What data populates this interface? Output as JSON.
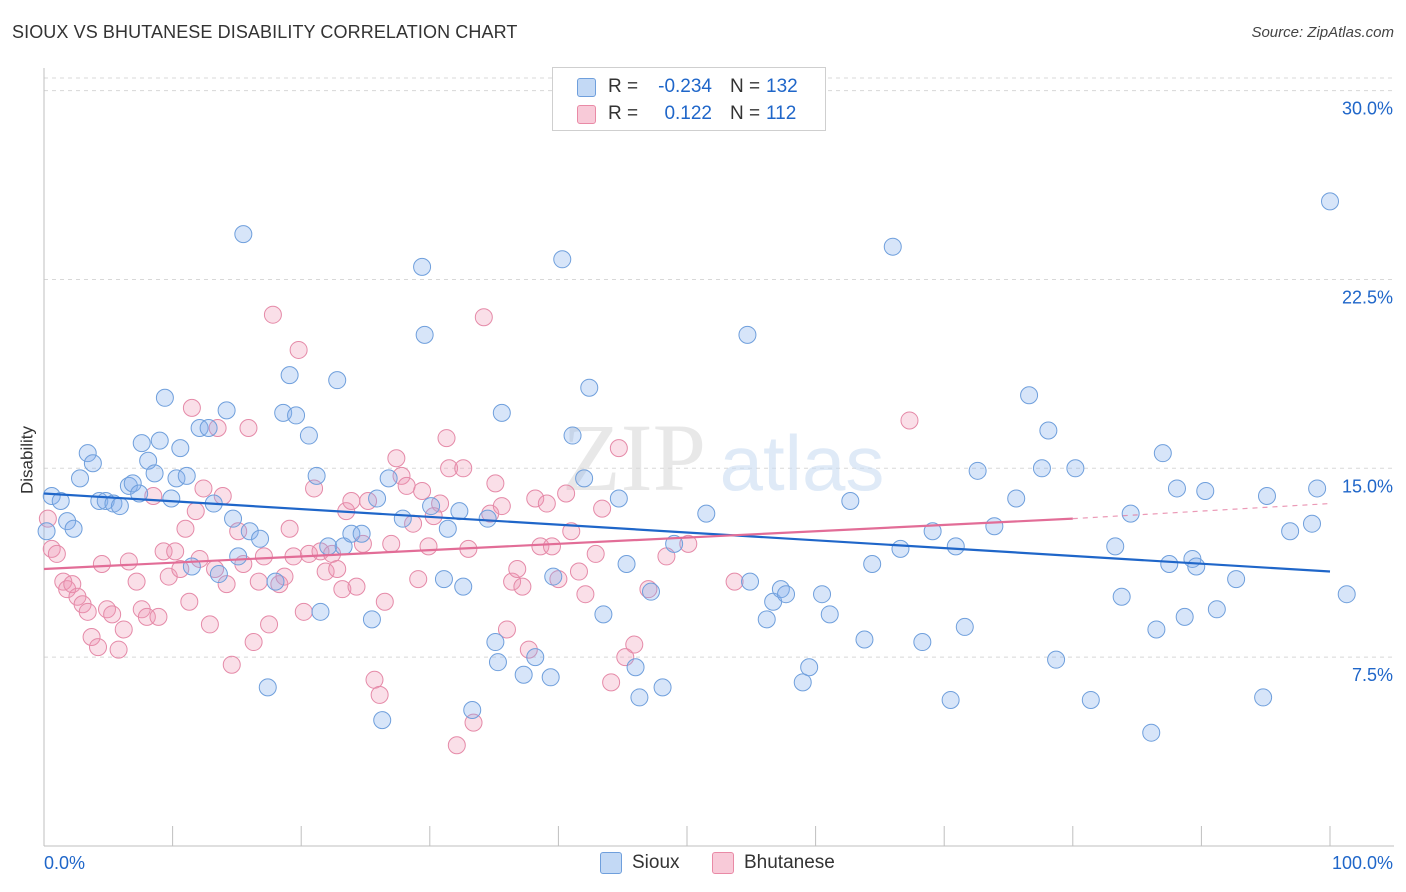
{
  "title": "SIOUX VS BHUTANESE DISABILITY CORRELATION CHART",
  "source": "Source: ZipAtlas.com",
  "watermark": "ZIPatlas",
  "legend": {
    "rows": [
      {
        "r_label": "R =",
        "r_value": "-0.234",
        "n_label": "N =",
        "n_value": "132",
        "color": "#a8c8f0",
        "border": "#6f9fdc"
      },
      {
        "r_label": "R =",
        "r_value": "0.122",
        "n_label": "N =",
        "n_value": "112",
        "color": "#f5b8cb",
        "border": "#e98aa6"
      }
    ]
  },
  "bottom_legend": [
    "Sioux",
    "Bhutanese"
  ],
  "colors": {
    "sioux_fill": "rgba(130,175,235,0.32)",
    "sioux_stroke": "#6f9fdc",
    "sioux_line": "#1f66c9",
    "bhutanese_fill": "rgba(240,150,180,0.30)",
    "bhutanese_stroke": "#e58aa8",
    "bhutanese_line": "#e26d97",
    "axis_text": "#1f66c9",
    "grid": "#d8d8d8"
  },
  "chart_data": {
    "type": "scatter",
    "title": "SIOUX VS BHUTANESE DISABILITY CORRELATION CHART",
    "xlabel": "",
    "ylabel": "Disability",
    "xlim": [
      0,
      100
    ],
    "ylim": [
      0,
      30.5
    ],
    "x_tick_labels": [
      "0.0%",
      "100.0%"
    ],
    "y_ticks": [
      7.5,
      15.0,
      22.5,
      30.0
    ],
    "y_tick_labels": [
      "7.5%",
      "15.0%",
      "22.5%",
      "30.0%"
    ],
    "grid": true,
    "legend_position": "top-center",
    "series": [
      {
        "name": "Sioux",
        "r": -0.234,
        "n": 132,
        "trend": {
          "x": [
            0,
            100
          ],
          "y": [
            14.0,
            10.9
          ]
        },
        "points": [
          [
            0.2,
            12.5
          ],
          [
            0.6,
            13.9
          ],
          [
            1.3,
            13.7
          ],
          [
            1.8,
            12.9
          ],
          [
            2.3,
            12.6
          ],
          [
            2.8,
            14.6
          ],
          [
            3.4,
            15.6
          ],
          [
            3.8,
            15.2
          ],
          [
            4.3,
            13.7
          ],
          [
            4.8,
            13.7
          ],
          [
            5.4,
            13.6
          ],
          [
            5.9,
            13.5
          ],
          [
            6.6,
            14.3
          ],
          [
            6.9,
            14.4
          ],
          [
            7.4,
            14.0
          ],
          [
            7.6,
            16.0
          ],
          [
            8.1,
            15.3
          ],
          [
            8.6,
            14.8
          ],
          [
            9.0,
            16.1
          ],
          [
            9.4,
            17.8
          ],
          [
            9.9,
            13.8
          ],
          [
            10.3,
            14.6
          ],
          [
            10.6,
            15.8
          ],
          [
            11.1,
            14.7
          ],
          [
            11.5,
            11.1
          ],
          [
            12.1,
            16.6
          ],
          [
            12.8,
            16.6
          ],
          [
            13.2,
            13.6
          ],
          [
            13.6,
            10.8
          ],
          [
            14.2,
            17.3
          ],
          [
            14.7,
            13.0
          ],
          [
            15.1,
            11.5
          ],
          [
            15.5,
            24.3
          ],
          [
            16.0,
            12.5
          ],
          [
            16.8,
            12.2
          ],
          [
            17.4,
            6.3
          ],
          [
            18.0,
            10.5
          ],
          [
            18.6,
            17.2
          ],
          [
            19.1,
            18.7
          ],
          [
            19.6,
            17.1
          ],
          [
            20.6,
            16.3
          ],
          [
            21.2,
            14.7
          ],
          [
            21.5,
            9.3
          ],
          [
            22.1,
            11.9
          ],
          [
            22.8,
            18.5
          ],
          [
            23.3,
            11.9
          ],
          [
            23.9,
            12.4
          ],
          [
            24.7,
            12.4
          ],
          [
            25.5,
            9.0
          ],
          [
            25.9,
            13.8
          ],
          [
            26.3,
            5.0
          ],
          [
            26.8,
            14.6
          ],
          [
            27.9,
            13.0
          ],
          [
            29.4,
            23.0
          ],
          [
            29.6,
            20.3
          ],
          [
            30.1,
            13.5
          ],
          [
            31.1,
            10.6
          ],
          [
            31.4,
            12.6
          ],
          [
            32.3,
            13.3
          ],
          [
            32.6,
            10.3
          ],
          [
            33.3,
            5.4
          ],
          [
            34.5,
            13.0
          ],
          [
            35.1,
            8.1
          ],
          [
            35.3,
            7.3
          ],
          [
            35.6,
            17.2
          ],
          [
            37.3,
            6.8
          ],
          [
            38.2,
            7.5
          ],
          [
            39.4,
            6.7
          ],
          [
            39.6,
            10.7
          ],
          [
            40.3,
            23.3
          ],
          [
            41.1,
            16.3
          ],
          [
            42.0,
            14.6
          ],
          [
            42.4,
            18.2
          ],
          [
            43.5,
            9.2
          ],
          [
            44.7,
            13.8
          ],
          [
            45.3,
            11.2
          ],
          [
            46.0,
            7.1
          ],
          [
            46.3,
            5.9
          ],
          [
            47.2,
            10.1
          ],
          [
            48.1,
            6.3
          ],
          [
            49.0,
            12.0
          ],
          [
            51.5,
            13.2
          ],
          [
            54.7,
            20.3
          ],
          [
            54.9,
            10.5
          ],
          [
            56.2,
            9.0
          ],
          [
            56.7,
            9.7
          ],
          [
            57.3,
            10.2
          ],
          [
            57.7,
            10.0
          ],
          [
            59.0,
            6.5
          ],
          [
            59.5,
            7.1
          ],
          [
            60.5,
            10.0
          ],
          [
            61.1,
            9.2
          ],
          [
            62.7,
            13.7
          ],
          [
            63.8,
            8.2
          ],
          [
            64.4,
            11.2
          ],
          [
            66.0,
            23.8
          ],
          [
            66.6,
            11.8
          ],
          [
            68.3,
            8.1
          ],
          [
            69.1,
            12.5
          ],
          [
            70.5,
            5.8
          ],
          [
            70.9,
            11.9
          ],
          [
            71.6,
            8.7
          ],
          [
            72.6,
            14.9
          ],
          [
            73.9,
            12.7
          ],
          [
            75.6,
            13.8
          ],
          [
            76.6,
            17.9
          ],
          [
            77.6,
            15.0
          ],
          [
            78.1,
            16.5
          ],
          [
            78.7,
            7.4
          ],
          [
            80.2,
            15.0
          ],
          [
            81.4,
            5.8
          ],
          [
            83.3,
            11.9
          ],
          [
            83.8,
            9.9
          ],
          [
            84.5,
            13.2
          ],
          [
            86.1,
            4.5
          ],
          [
            86.5,
            8.6
          ],
          [
            87.0,
            15.6
          ],
          [
            87.5,
            11.2
          ],
          [
            88.1,
            14.2
          ],
          [
            88.7,
            9.1
          ],
          [
            89.3,
            11.4
          ],
          [
            89.6,
            11.1
          ],
          [
            90.3,
            14.1
          ],
          [
            91.2,
            9.4
          ],
          [
            92.7,
            10.6
          ],
          [
            94.8,
            5.9
          ],
          [
            95.1,
            13.9
          ],
          [
            96.9,
            12.5
          ],
          [
            98.6,
            12.8
          ],
          [
            99.0,
            14.2
          ],
          [
            100.0,
            25.6
          ],
          [
            101.3,
            10.0
          ]
        ]
      },
      {
        "name": "Bhutanese",
        "r": 0.122,
        "n": 112,
        "trend": {
          "x": [
            0,
            80
          ],
          "y": [
            11.0,
            13.0
          ],
          "dashed_to": {
            "x": 100,
            "y": 13.6
          }
        },
        "points": [
          [
            0.3,
            13.0
          ],
          [
            0.6,
            11.8
          ],
          [
            1.0,
            11.6
          ],
          [
            1.5,
            10.5
          ],
          [
            1.8,
            10.2
          ],
          [
            2.2,
            10.4
          ],
          [
            2.6,
            9.9
          ],
          [
            3.0,
            9.6
          ],
          [
            3.4,
            9.3
          ],
          [
            3.7,
            8.3
          ],
          [
            4.2,
            7.9
          ],
          [
            4.5,
            11.2
          ],
          [
            4.9,
            9.4
          ],
          [
            5.3,
            9.2
          ],
          [
            5.8,
            7.8
          ],
          [
            6.2,
            8.6
          ],
          [
            6.6,
            11.3
          ],
          [
            7.2,
            10.5
          ],
          [
            7.6,
            9.4
          ],
          [
            8.0,
            9.1
          ],
          [
            8.5,
            13.9
          ],
          [
            8.9,
            9.1
          ],
          [
            9.3,
            11.7
          ],
          [
            9.7,
            10.7
          ],
          [
            10.2,
            11.7
          ],
          [
            10.6,
            11.0
          ],
          [
            11.0,
            12.6
          ],
          [
            11.3,
            9.7
          ],
          [
            11.5,
            17.4
          ],
          [
            11.8,
            13.3
          ],
          [
            12.1,
            11.4
          ],
          [
            12.4,
            14.2
          ],
          [
            12.9,
            8.8
          ],
          [
            13.3,
            11.0
          ],
          [
            13.5,
            16.6
          ],
          [
            13.9,
            13.9
          ],
          [
            14.2,
            10.4
          ],
          [
            14.6,
            7.2
          ],
          [
            15.1,
            12.5
          ],
          [
            15.5,
            11.2
          ],
          [
            15.9,
            16.6
          ],
          [
            16.3,
            8.1
          ],
          [
            16.7,
            10.5
          ],
          [
            17.1,
            11.5
          ],
          [
            17.5,
            8.8
          ],
          [
            17.8,
            21.1
          ],
          [
            18.3,
            10.4
          ],
          [
            18.7,
            10.7
          ],
          [
            19.1,
            12.6
          ],
          [
            19.4,
            11.5
          ],
          [
            19.8,
            19.7
          ],
          [
            20.2,
            9.3
          ],
          [
            20.6,
            11.6
          ],
          [
            21.0,
            14.2
          ],
          [
            21.5,
            11.7
          ],
          [
            21.9,
            10.9
          ],
          [
            22.4,
            11.6
          ],
          [
            22.8,
            11.0
          ],
          [
            23.2,
            10.2
          ],
          [
            23.5,
            13.3
          ],
          [
            23.9,
            13.7
          ],
          [
            24.3,
            10.3
          ],
          [
            24.8,
            12.0
          ],
          [
            25.2,
            13.7
          ],
          [
            25.7,
            6.6
          ],
          [
            26.1,
            6.0
          ],
          [
            26.5,
            9.7
          ],
          [
            27.0,
            12.0
          ],
          [
            27.4,
            15.4
          ],
          [
            27.8,
            14.7
          ],
          [
            28.2,
            14.3
          ],
          [
            28.7,
            12.8
          ],
          [
            29.1,
            10.6
          ],
          [
            29.4,
            14.1
          ],
          [
            29.9,
            11.9
          ],
          [
            30.3,
            13.1
          ],
          [
            30.8,
            13.6
          ],
          [
            31.3,
            16.2
          ],
          [
            31.5,
            15.0
          ],
          [
            32.1,
            4.0
          ],
          [
            32.6,
            15.0
          ],
          [
            33.0,
            11.8
          ],
          [
            33.4,
            4.9
          ],
          [
            34.2,
            21.0
          ],
          [
            34.7,
            13.2
          ],
          [
            35.1,
            14.4
          ],
          [
            35.6,
            13.5
          ],
          [
            36.0,
            8.6
          ],
          [
            36.4,
            10.5
          ],
          [
            36.8,
            11.0
          ],
          [
            37.2,
            10.3
          ],
          [
            37.7,
            7.8
          ],
          [
            38.2,
            13.8
          ],
          [
            38.6,
            11.9
          ],
          [
            39.1,
            13.6
          ],
          [
            39.5,
            11.9
          ],
          [
            40.0,
            10.6
          ],
          [
            40.6,
            14.0
          ],
          [
            41.0,
            12.5
          ],
          [
            41.6,
            10.9
          ],
          [
            42.1,
            10.0
          ],
          [
            42.9,
            11.6
          ],
          [
            43.4,
            13.4
          ],
          [
            44.1,
            6.5
          ],
          [
            44.7,
            15.8
          ],
          [
            45.2,
            7.5
          ],
          [
            45.9,
            8.0
          ],
          [
            47.0,
            10.2
          ],
          [
            48.4,
            11.5
          ],
          [
            50.1,
            12.0
          ],
          [
            53.7,
            10.5
          ],
          [
            67.3,
            16.9
          ]
        ]
      }
    ]
  }
}
